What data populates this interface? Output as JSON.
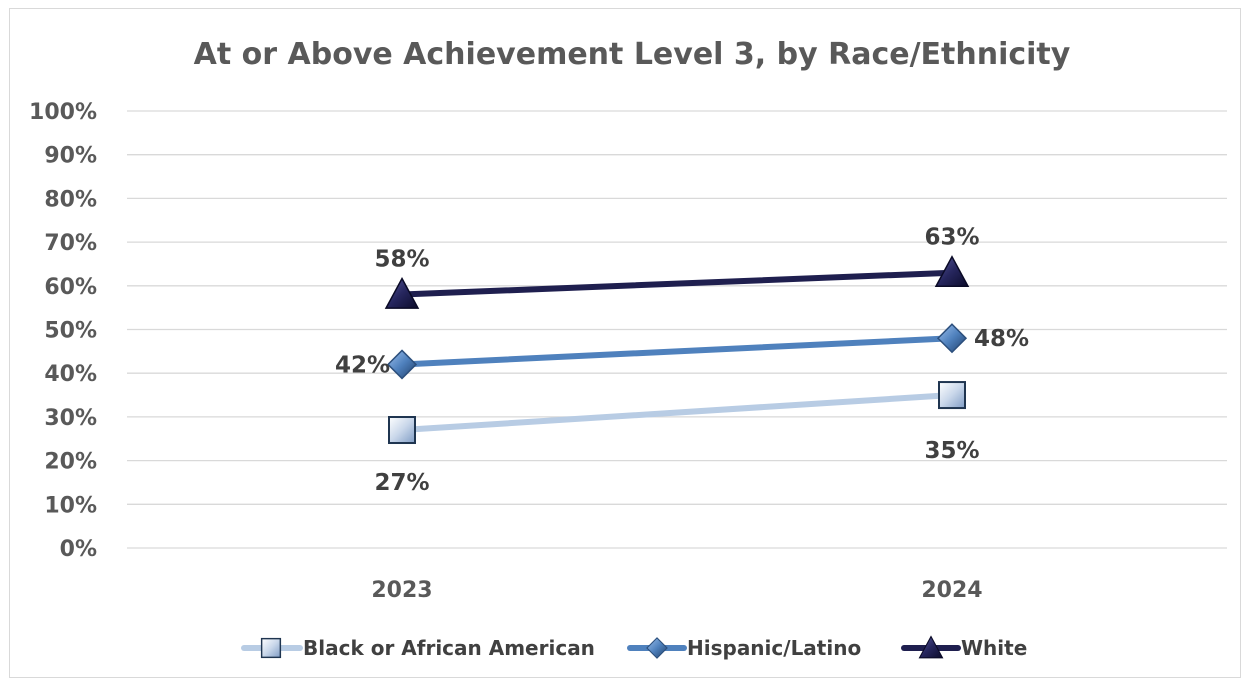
{
  "chart_data": {
    "type": "line",
    "title": "At or Above Achievement Level 3, by Race/Ethnicity",
    "categories": [
      "2023",
      "2024"
    ],
    "y_ticks": [
      "0%",
      "10%",
      "20%",
      "30%",
      "40%",
      "50%",
      "60%",
      "70%",
      "80%",
      "90%",
      "100%"
    ],
    "ylim": [
      0,
      100
    ],
    "grid": true,
    "legend_position": "bottom",
    "series": [
      {
        "name": "Black or African American",
        "values": [
          27,
          35
        ],
        "labels": [
          "27%",
          "35%"
        ],
        "color": "#b8cce4",
        "marker": "square"
      },
      {
        "name": "Hispanic/Latino",
        "values": [
          42,
          48
        ],
        "labels": [
          "42%",
          "48%"
        ],
        "color": "#4f81bd",
        "marker": "diamond"
      },
      {
        "name": "White",
        "values": [
          58,
          63
        ],
        "labels": [
          "58%",
          "63%"
        ],
        "color": "#1f1f4f",
        "marker": "triangle"
      }
    ]
  }
}
